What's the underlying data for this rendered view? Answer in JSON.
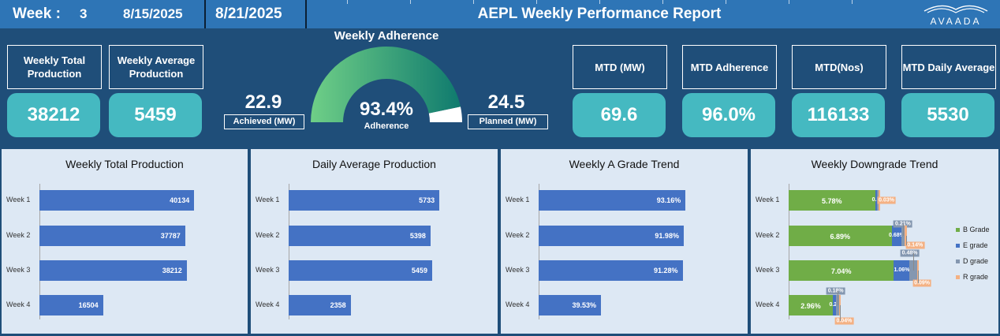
{
  "header": {
    "week_label": "Week :",
    "week_number": "3",
    "start_date": "8/15/2025",
    "end_date": "8/21/2025",
    "title": "AEPL Weekly Performance Report",
    "logo_text": "AVAADA"
  },
  "kpis_left": [
    {
      "label": "Weekly Total Production",
      "value": "38212"
    },
    {
      "label": "Weekly Average Production",
      "value": "5459"
    }
  ],
  "gauge": {
    "title": "Weekly Adherence",
    "achieved_value": "22.9",
    "achieved_label": "Achieved (MW)",
    "planned_value": "24.5",
    "planned_label": "Planned (MW)",
    "percent_text": "93.4%",
    "percent_caption": "Adherence",
    "fraction": 0.934,
    "fill_color_start": "#6fcf87",
    "fill_color_end": "#0f7a6e",
    "remainder_color": "#ffffff"
  },
  "kpis_right": [
    {
      "label": "MTD (MW)",
      "value": "69.6"
    },
    {
      "label": "MTD Adherence",
      "value": "96.0%"
    },
    {
      "label": "MTD(Nos)",
      "value": "116133"
    },
    {
      "label": "MTD Daily Average",
      "value": "5530"
    }
  ],
  "chart_data": [
    {
      "type": "bar",
      "title": "Weekly Total Production",
      "categories": [
        "Week 1",
        "Week 2",
        "Week 3",
        "Week 4"
      ],
      "values": [
        40134,
        37787,
        38212,
        16504
      ],
      "value_labels": [
        "40134",
        "37787",
        "38212",
        "16504"
      ],
      "xlim": [
        0,
        45000
      ],
      "bar_color": "#4472c4"
    },
    {
      "type": "bar",
      "title": "Daily Average Production",
      "categories": [
        "Week 1",
        "Week 2",
        "Week 3",
        "Week 4"
      ],
      "values": [
        5733,
        5398,
        5459,
        2358
      ],
      "value_labels": [
        "5733",
        "5398",
        "5459",
        "2358"
      ],
      "xlim": [
        0,
        6600
      ],
      "bar_color": "#4472c4"
    },
    {
      "type": "bar",
      "title": "Weekly A Grade Trend",
      "categories": [
        "Week 1",
        "Week 2",
        "Week 3",
        "Week 4"
      ],
      "values": [
        93.16,
        91.98,
        91.28,
        39.53
      ],
      "value_labels": [
        "93.16%",
        "91.98%",
        "91.28%",
        "39.53%"
      ],
      "xlim": [
        0,
        110
      ],
      "bar_color": "#4472c4"
    },
    {
      "type": "bar",
      "title": "Weekly Downgrade Trend",
      "stacked": true,
      "categories": [
        "Week 1",
        "Week 2",
        "Week 3",
        "Week 4"
      ],
      "xlim": [
        0,
        9.5
      ],
      "legend_position": "right",
      "series": [
        {
          "name": "B Grade",
          "color": "#70ad47",
          "values": [
            5.78,
            6.89,
            7.04,
            2.96
          ],
          "labels": [
            "5.78%",
            "6.89%",
            "7.04%",
            "2.96%"
          ]
        },
        {
          "name": "E grade",
          "color": "#4472c4",
          "values": [
            0.1,
            0.68,
            1.06,
            0.23
          ],
          "labels": [
            "0.1",
            "0.68%",
            "1.06%",
            "0.23"
          ]
        },
        {
          "name": "D grade",
          "color": "#8497b0",
          "values": [
            0.05,
            0.21,
            0.48,
            0.18
          ],
          "labels": [
            "",
            "0.21%",
            "0.48%",
            "0.18%"
          ]
        },
        {
          "name": "R grade",
          "color": "#f4b183",
          "values": [
            0.03,
            0.14,
            0.09,
            0.04
          ],
          "labels": [
            "0.03%",
            "0.14%",
            "0.09%",
            "0.04%"
          ]
        }
      ]
    }
  ]
}
